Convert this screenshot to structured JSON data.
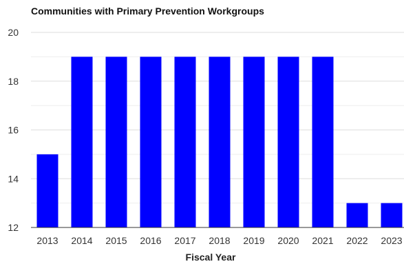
{
  "chart_data": {
    "type": "bar",
    "title": "Communities with Primary Prevention Workgroups",
    "xlabel": "Fiscal Year",
    "ylabel": "",
    "categories": [
      "2013",
      "2014",
      "2015",
      "2016",
      "2017",
      "2018",
      "2019",
      "2020",
      "2021",
      "2022",
      "2023"
    ],
    "values": [
      15,
      19,
      19,
      19,
      19,
      19,
      19,
      19,
      19,
      13,
      13
    ],
    "ylim": [
      12,
      20
    ],
    "yticks": [
      12,
      14,
      16,
      18,
      20
    ],
    "grid": true,
    "legend": "none",
    "bar_color": "#0000FF",
    "grid_color": "#DDDDDD",
    "baseline_color": "#333333"
  }
}
